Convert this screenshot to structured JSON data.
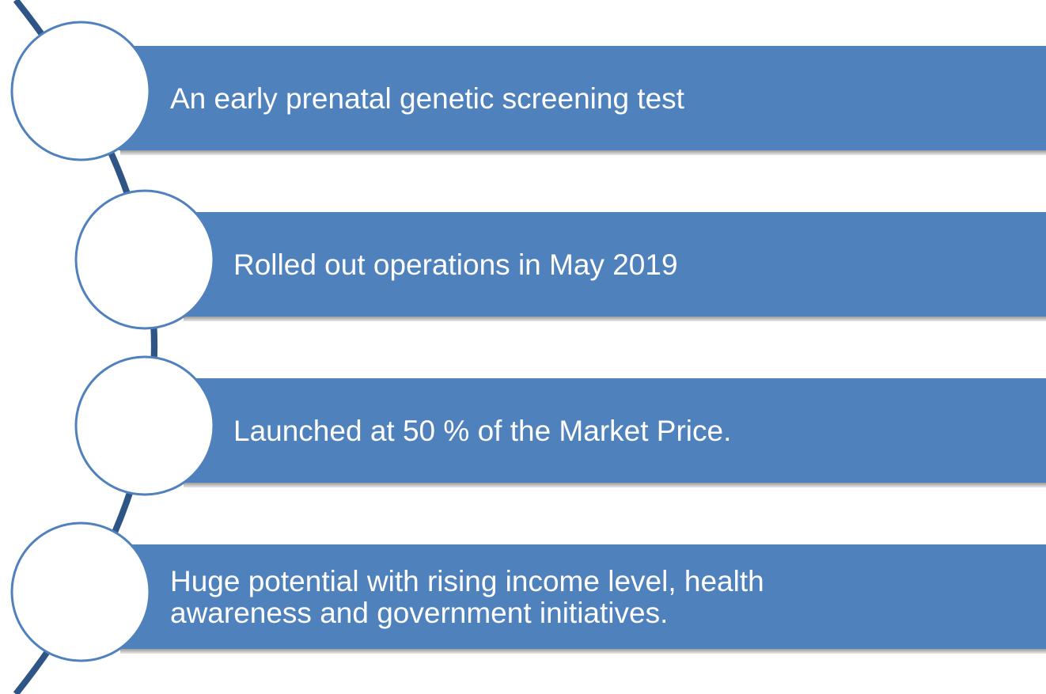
{
  "items": [
    {
      "lines": [
        "An early prenatal genetic screening test"
      ]
    },
    {
      "lines": [
        "Rolled out operations in May 2019"
      ]
    },
    {
      "lines": [
        "Launched at 50 % of the Market Price."
      ]
    },
    {
      "lines": [
        "Huge potential with rising income level, health",
        "awareness and government initiatives."
      ]
    }
  ]
}
